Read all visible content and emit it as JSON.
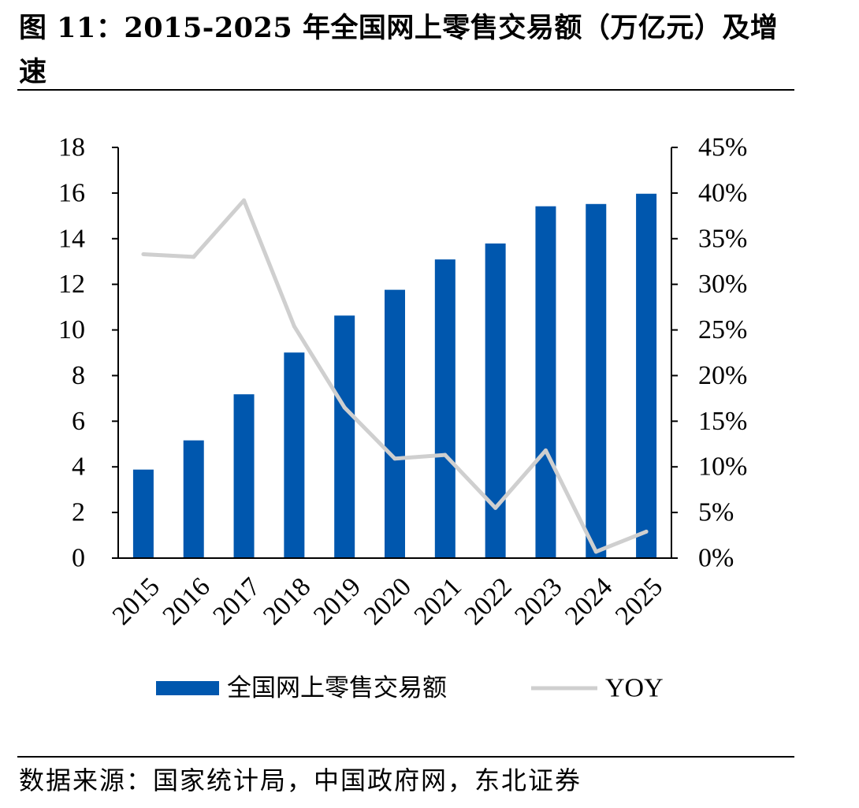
{
  "figure": {
    "title": "图 11：2015-2025 年全国网上零售交易额（万亿元）及增速",
    "source": "数据来源：国家统计局，中国政府网，东北证券"
  },
  "colors": {
    "bar": "#0057AE",
    "line": "#CFCFCF",
    "axis": "#000000"
  },
  "chart_data": {
    "type": "bar",
    "title": "",
    "xlabel": "",
    "ylabel": "",
    "categories": [
      "2015",
      "2016",
      "2017",
      "2018",
      "2019",
      "2020",
      "2021",
      "2022",
      "2023",
      "2024",
      "2025"
    ],
    "series": [
      {
        "name": "全国网上零售交易额",
        "type": "bar",
        "axis": "left",
        "values": [
          3.88,
          5.16,
          7.18,
          9.01,
          10.63,
          11.76,
          13.09,
          13.79,
          15.42,
          15.52,
          15.97
        ]
      },
      {
        "name": "YOY",
        "type": "line",
        "axis": "right",
        "values": [
          33.3,
          33.0,
          39.2,
          25.4,
          16.5,
          10.9,
          11.3,
          5.5,
          11.8,
          0.7,
          2.9
        ]
      }
    ],
    "y_left": {
      "range": [
        0,
        18
      ],
      "ticks": [
        0,
        2,
        4,
        6,
        8,
        10,
        12,
        14,
        16,
        18
      ]
    },
    "y_right": {
      "range": [
        0,
        45
      ],
      "ticks": [
        "0%",
        "5%",
        "10%",
        "15%",
        "20%",
        "25%",
        "30%",
        "35%",
        "40%",
        "45%"
      ]
    },
    "grid": false,
    "legend_position": "bottom"
  }
}
